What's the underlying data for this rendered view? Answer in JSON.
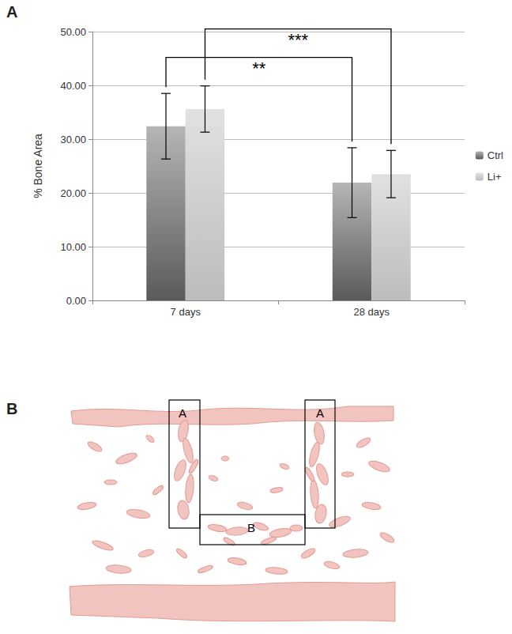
{
  "panel_labels": [
    "A",
    "B"
  ],
  "chart_data": {
    "type": "bar",
    "categories": [
      "7 days",
      "28 days"
    ],
    "series": [
      {
        "name": "Ctrl",
        "color": "#5a5a5a",
        "values": [
          32.4,
          21.9
        ],
        "errors": [
          6.1,
          6.5
        ]
      },
      {
        "name": "Li+",
        "color": "#bcbcbc",
        "values": [
          35.6,
          23.5
        ],
        "errors": [
          4.3,
          4.4
        ]
      }
    ],
    "ylabel": "% Bone Area",
    "ylim": [
      0,
      50
    ],
    "yticks": [
      {
        "value": 0,
        "label": "0.00"
      },
      {
        "value": 10,
        "label": "10.00"
      },
      {
        "value": 20,
        "label": "20.00"
      },
      {
        "value": 30,
        "label": "30.00"
      },
      {
        "value": 40,
        "label": "40.00"
      },
      {
        "value": 50,
        "label": "50.00"
      }
    ],
    "grid": true,
    "legend": "right",
    "annotations": [
      {
        "text": "**",
        "from": {
          "category": "7 days",
          "series": "Ctrl"
        },
        "to": {
          "category": "28 days",
          "series": "Ctrl"
        }
      },
      {
        "text": "***",
        "from": {
          "category": "7 days",
          "series": "Li+"
        },
        "to": {
          "category": "28 days",
          "series": "Li+"
        }
      }
    ]
  },
  "diagram": {
    "regions": [
      {
        "label": "A"
      },
      {
        "label": "A"
      },
      {
        "label": "B"
      }
    ]
  }
}
